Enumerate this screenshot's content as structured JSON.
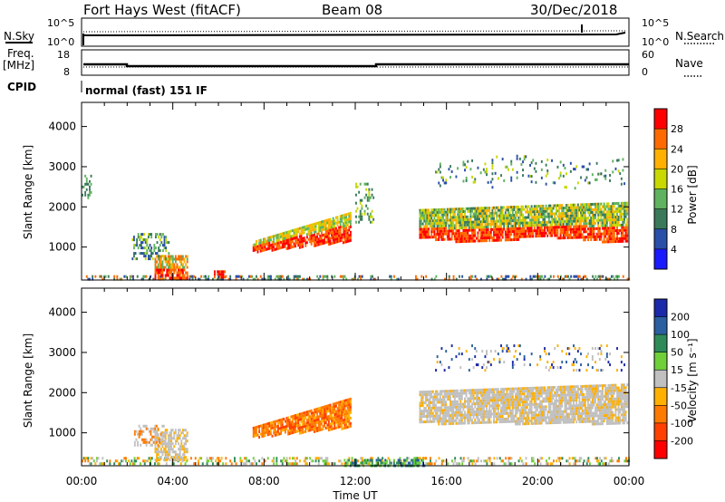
{
  "header": {
    "station": "Fort Hays West (fitACF)",
    "beam": "Beam 08",
    "date": "30/Dec/2018"
  },
  "top_panels": {
    "nsky_label": "N.Sky",
    "nsky_ticks": [
      "10^5",
      "10^0"
    ],
    "nsearch_label": "N.Search",
    "nsearch_ticks": [
      "10^5",
      "10^0"
    ],
    "freq_label": "Freq.",
    "freq_unit": "[MHz]",
    "freq_ticks": [
      "18",
      "8"
    ],
    "nave_label": "Nave",
    "nave_ticks": [
      "60",
      "0"
    ],
    "cpid_label": "CPID",
    "cpid_value": "normal (fast) 151 IF"
  },
  "chart_data": [
    {
      "type": "heatmap",
      "name": "power",
      "ylabel": "Slant Range [km]",
      "yticks": [
        "4000",
        "3000",
        "2000",
        "1000"
      ],
      "ylim": [
        180,
        4600
      ],
      "xlim_hours": [
        0,
        24
      ],
      "xticks": [
        "00:00",
        "04:00",
        "08:00",
        "12:00",
        "16:00",
        "20:00",
        "00:00"
      ],
      "colorbar": {
        "label": "Power [dB]",
        "ticks": [
          "28",
          "24",
          "20",
          "16",
          "12",
          "8",
          "4"
        ],
        "colors": [
          "#ff0000",
          "#ff6a00",
          "#ffb000",
          "#c8d800",
          "#5fb25f",
          "#3a7a5a",
          "#2a4fa8",
          "#1a1aff"
        ]
      }
    },
    {
      "type": "heatmap",
      "name": "velocity",
      "ylabel": "Slant Range [km]",
      "yticks": [
        "4000",
        "3000",
        "2000",
        "1000"
      ],
      "ylim": [
        180,
        4600
      ],
      "xlim_hours": [
        0,
        24
      ],
      "xticks": [
        "00:00",
        "04:00",
        "08:00",
        "12:00",
        "16:00",
        "20:00",
        "00:00"
      ],
      "xlabel": "Time UT",
      "colorbar": {
        "label": "Velocity [m s⁻¹]",
        "ticks": [
          "200",
          "100",
          "50",
          "15",
          "-15",
          "-50",
          "-100",
          "-200"
        ],
        "colors": [
          "#1a2aa8",
          "#2a5fa0",
          "#2e8b57",
          "#6fd03a",
          "#c0c0c0",
          "#ffb000",
          "#ff7a00",
          "#ff4000",
          "#ff0000"
        ]
      }
    }
  ]
}
